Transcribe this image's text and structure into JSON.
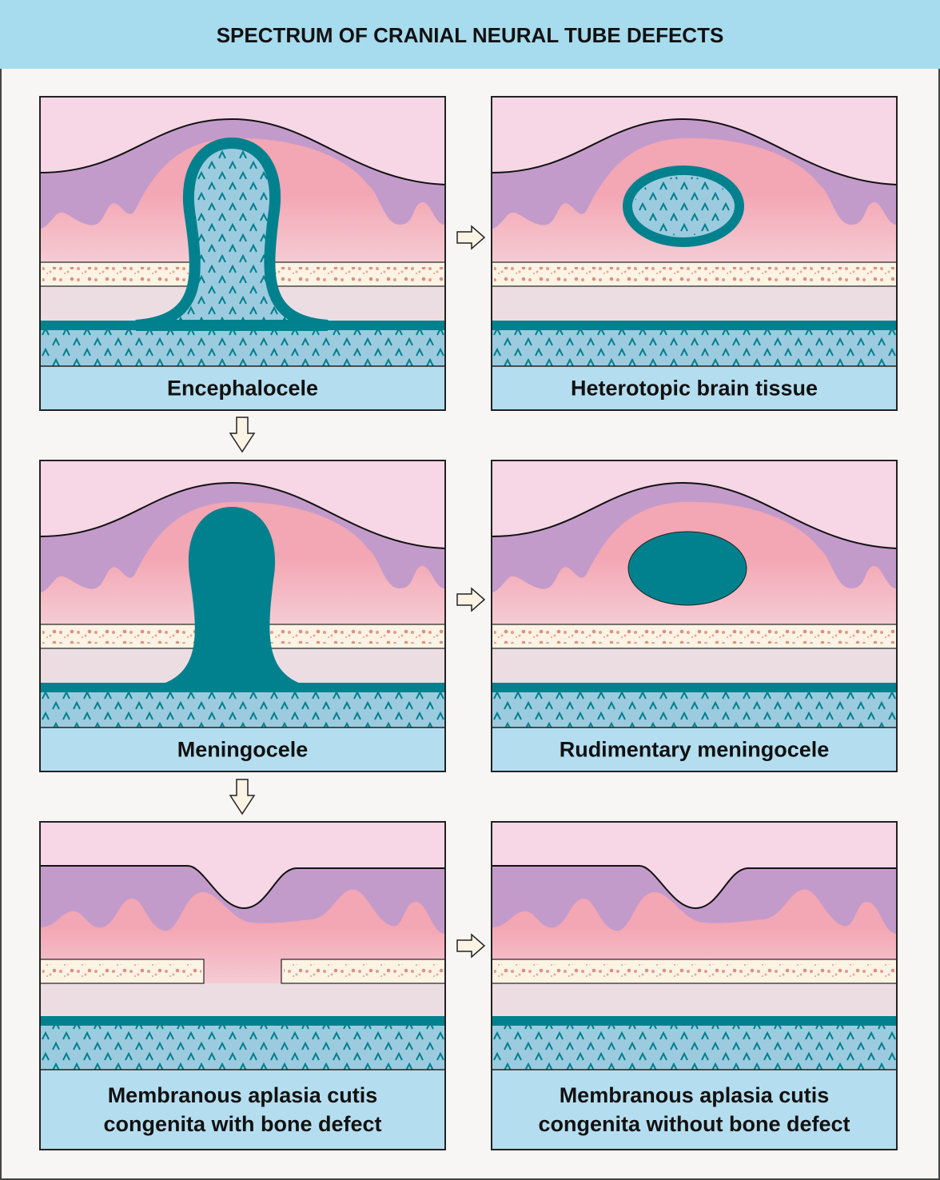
{
  "header": {
    "title": "SPECTRUM OF CRANIAL NEURAL TUBE DEFECTS"
  },
  "panels": [
    {
      "label": [
        "Encephalocele"
      ]
    },
    {
      "label": [
        "Heterotopic brain tissue"
      ]
    },
    {
      "label": [
        "Meningocele"
      ]
    },
    {
      "label": [
        "Rudimentary meningocele"
      ]
    },
    {
      "label": [
        "Membranous aplasia cutis",
        "congenita with bone defect"
      ]
    },
    {
      "label": [
        "Membranous aplasia cutis",
        "congenita without bone defect"
      ]
    }
  ]
}
